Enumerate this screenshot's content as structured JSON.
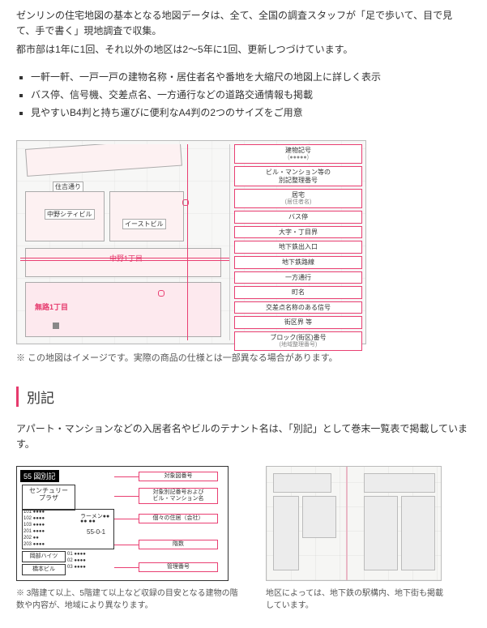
{
  "intro": {
    "line1": "ゼンリンの住宅地図の基本となる地図データは、全て、全国の調査スタッフが「足で歩いて、目で見て、手で書く」現地調査で収集。",
    "line2": "都市部は1年に1回、それ以外の地区は2～5年に1回、更新しつづけています。"
  },
  "bullets": [
    "一軒一軒、一戸一戸の建物名称・居住者名や番地を大縮尺の地図上に詳しく表示",
    "バス停、信号機、交差点名、一方通行などの道路交通情報も掲載",
    "見やすいB4判と持ち運びに便利なA4判の2つのサイズをご用意"
  ],
  "map": {
    "road1": "住吉通り",
    "bldg1": "中野シティビル",
    "bldg2": "イーストビル",
    "area_label1": "中野1丁目",
    "area_label2": "無路1丁目",
    "legend": [
      {
        "t": "建物記号",
        "s": "(●●●●●)"
      },
      {
        "t": "ビル・マンション等の\n別記整理番号"
      },
      {
        "t": "居宅",
        "s": "(居住者名)"
      },
      {
        "t": "バス停"
      },
      {
        "t": "大字・丁目界"
      },
      {
        "t": "地下鉄出入口"
      },
      {
        "t": "地下鉄路線"
      },
      {
        "t": "一方通行"
      },
      {
        "t": "町名"
      },
      {
        "t": "交差点名称のある信号"
      },
      {
        "t": "街区界 等"
      },
      {
        "t": "ブロック(街区)番号",
        "s": "(地域整理番号)"
      }
    ]
  },
  "map_caption": "※ この地図はイメージです。実際の商品の仕様とは一部異なる場合があります。",
  "section2": {
    "title": "別記",
    "desc": "アパート・マンションなどの入居者名やビルのテナント名は、「別記」として巻末一覧表で掲載しています。",
    "annex": {
      "title": "55 図別記",
      "bldg1": "センチュリー\nプラザ",
      "room_head": "55-0-1",
      "bldg2": "岡部ハイツ",
      "bldg3": "橋本ビル",
      "labels": [
        "対象図番号",
        "対象別記番号および\nビル・マンション名",
        "個々の住居（会社）",
        "階数",
        "管理番号"
      ]
    },
    "left_caption": "※ 3階建て以上、5階建て以上など収録の目安となる建物の階数や内容が、地域により異なります。",
    "right_caption": "地区によっては、地下鉄の駅構内、地下街も掲載しています。"
  },
  "colors": {
    "accent": "#e63a6d"
  }
}
